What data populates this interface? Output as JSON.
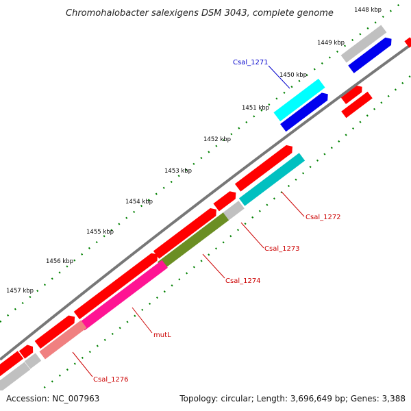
{
  "title": "Chromohalobacter salexigens DSM 3043, complete genome",
  "footer": {
    "accession": "Accession: NC_007963",
    "summary": "Topology: circular; Length: 3,696,649 bp; Genes: 3,388"
  },
  "ticks": [
    "1448 kbp",
    "1449 kbp",
    "1450 kbp",
    "1451 kbp",
    "1452 kbp",
    "1453 kbp",
    "1454 kbp",
    "1455 kbp",
    "1456 kbp",
    "1457 kbp"
  ],
  "gene_labels": {
    "csal_1271": "Csal_1271",
    "csal_1272": "Csal_1272",
    "csal_1273": "Csal_1273",
    "csal_1274": "Csal_1274",
    "mutl": "mutL",
    "csal_1276": "Csal_1276"
  },
  "colors": {
    "backbone": "#808080",
    "cds": "#ff0000",
    "csal_1271": "#00ffff",
    "csal_1272": "#00c0c0",
    "csal_1273": "#c0c0c0",
    "csal_1274": "#6b8e23",
    "mutl": "#ff1493",
    "csal_1276": "#f08080",
    "blue": "#0000ee",
    "tick": "#008000",
    "label_blue": "#0000cc",
    "label_red": "#cc0000"
  }
}
